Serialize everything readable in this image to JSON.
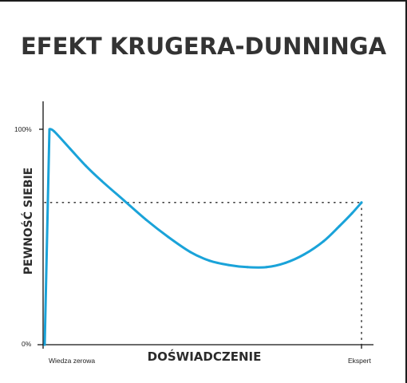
{
  "chart_data": {
    "type": "line",
    "title": "EFEKT KRUGERA-DUNNINGA",
    "xlabel": "DOŚWIADCZENIE",
    "ylabel": "PEWNOŚĆ SIEBIE",
    "x_tick_labels": [
      "Wiedza zerowa",
      "Ekspert"
    ],
    "y_tick_labels": [
      "0%",
      "100%"
    ],
    "xlim": [
      0,
      100
    ],
    "ylim": [
      0,
      100
    ],
    "grid": false,
    "series": [
      {
        "color": "#1aa3d9",
        "x": [
          0,
          1.5,
          3,
          8,
          13,
          18,
          25,
          32,
          39,
          46,
          52,
          58,
          64,
          70,
          76,
          82,
          88,
          93,
          97,
          100
        ],
        "y": [
          0,
          100,
          99,
          91,
          83,
          76,
          67,
          58,
          50,
          43,
          39,
          37,
          36,
          36,
          38,
          42,
          48,
          55,
          61,
          66
        ]
      }
    ],
    "reference_lines": [
      {
        "orientation": "horizontal",
        "y": 66,
        "from_x": 0,
        "to_x": 100,
        "style": "dotted"
      },
      {
        "orientation": "vertical",
        "x": 100,
        "from_y": 0,
        "to_y": 66,
        "style": "dotted"
      }
    ]
  }
}
